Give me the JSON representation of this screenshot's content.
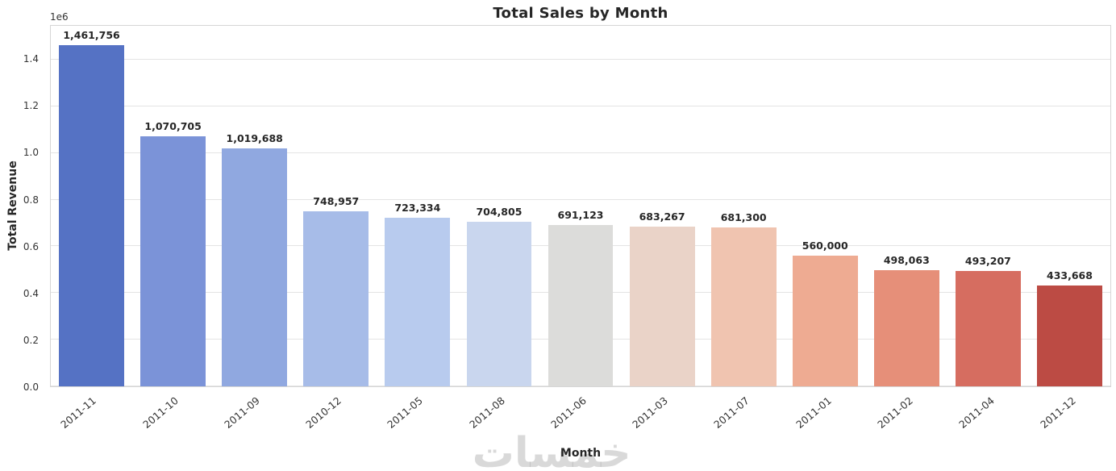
{
  "chart_data": {
    "type": "bar",
    "title": "Total Sales by Month",
    "xlabel": "Month",
    "ylabel": "Total Revenue",
    "y_offset_label": "1e6",
    "categories": [
      "2011-11",
      "2011-10",
      "2011-09",
      "2010-12",
      "2011-05",
      "2011-08",
      "2011-06",
      "2011-03",
      "2011-07",
      "2011-01",
      "2011-02",
      "2011-04",
      "2011-12"
    ],
    "values": [
      1461756,
      1070705,
      1019688,
      748957,
      723334,
      704805,
      691123,
      683267,
      681300,
      560000,
      498063,
      493207,
      433668
    ],
    "value_labels": [
      "1,461,756",
      "1,070,705",
      "1,019,688",
      "748,957",
      "723,334",
      "704,805",
      "691,123",
      "683,267",
      "681,300",
      "560,000",
      "498,063",
      "493,207",
      "433,668"
    ],
    "bar_colors": [
      "#5572c4",
      "#7b93d8",
      "#90a8e0",
      "#a7bce8",
      "#b8cbee",
      "#c9d6ee",
      "#dcdcda",
      "#ead3c8",
      "#f0c4b0",
      "#eeab92",
      "#e68f79",
      "#d66d60",
      "#bc4b44"
    ],
    "ylim": [
      0,
      1545000
    ],
    "yticks": [
      0,
      200000,
      400000,
      600000,
      800000,
      1000000,
      1200000,
      1400000
    ],
    "ytick_labels": [
      "0.0",
      "0.2",
      "0.4",
      "0.6",
      "0.8",
      "1.0",
      "1.2",
      "1.4"
    ],
    "grid": true,
    "legend": "none"
  },
  "watermark": {
    "text": "خمسات"
  }
}
